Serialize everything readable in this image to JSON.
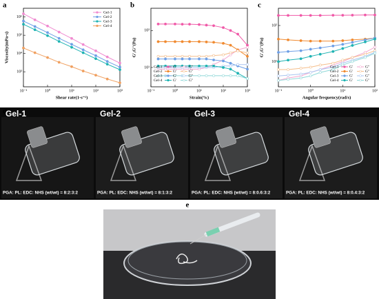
{
  "chart_data": [
    {
      "type": "line",
      "label": "a",
      "xlabel": "Shear rate(1·s⁻¹)",
      "ylabel": "Viscosity(mPa·s)",
      "xlog": true,
      "ylog": true,
      "legend": "upper right",
      "xlim": [
        0.1,
        1000
      ],
      "ylim": [
        150,
        3000000
      ],
      "xticks": [
        {
          "value": 0.1,
          "label": "10⁻¹"
        },
        {
          "value": 1,
          "label": "10⁰"
        },
        {
          "value": 10,
          "label": "10¹"
        },
        {
          "value": 100,
          "label": "10²"
        },
        {
          "value": 1000,
          "label": "10³"
        }
      ],
      "yticks": [
        {
          "value": 1000,
          "label": "10³"
        },
        {
          "value": 10000,
          "label": "10⁴"
        },
        {
          "value": 100000,
          "label": "10⁵"
        },
        {
          "value": 1000000,
          "label": "10⁶"
        }
      ],
      "x": [
        0.1,
        0.3,
        1,
        3,
        10,
        30,
        100,
        300,
        1000
      ],
      "series": [
        {
          "name": "Gel-1",
          "color": "#f08ad0",
          "filled": true,
          "values": [
            1500000,
            700000,
            320000,
            150000,
            67000,
            31000,
            14000,
            6500,
            3000
          ]
        },
        {
          "name": "Gel-2",
          "color": "#6e9fe6",
          "filled": true,
          "values": [
            600000,
            300000,
            140000,
            68000,
            32000,
            16000,
            7600,
            3700,
            1800
          ]
        },
        {
          "name": "Gel-3",
          "color": "#1fb3b3",
          "filled": true,
          "values": [
            400000,
            200000,
            95000,
            46000,
            22000,
            11000,
            5200,
            2600,
            1300
          ]
        },
        {
          "name": "Gel-4",
          "color": "#f0a060",
          "filled": true,
          "values": [
            20000,
            11000,
            6000,
            3300,
            1900,
            1100,
            650,
            400,
            250
          ]
        }
      ]
    },
    {
      "type": "line",
      "label": "b",
      "xlabel": "Strain(%)",
      "ylabel": "G',G''(Pa)",
      "xlog": true,
      "ylog": true,
      "legend": "lower left",
      "xlim": [
        0.1,
        1000
      ],
      "ylim": [
        3,
        400
      ],
      "xticks": [
        {
          "value": 0.1,
          "label": "10⁻¹"
        },
        {
          "value": 1,
          "label": "10⁰"
        },
        {
          "value": 10,
          "label": "10¹"
        },
        {
          "value": 100,
          "label": "10²"
        },
        {
          "value": 1000,
          "label": "10³"
        }
      ],
      "yticks": [
        {
          "value": 10,
          "label": "10¹"
        },
        {
          "value": 100,
          "label": "10²"
        }
      ],
      "x": [
        0.2,
        0.4,
        1,
        2,
        4,
        10,
        20,
        40,
        100,
        200,
        400,
        1000
      ],
      "series": [
        {
          "group": "Gel-1",
          "name": "G'",
          "color": "#f05aa8",
          "filled": true,
          "values": [
            150,
            150,
            150,
            148,
            148,
            145,
            140,
            135,
            120,
            100,
            80,
            40
          ]
        },
        {
          "group": "Gel-1",
          "name": "G''",
          "color": "#f3a6cf",
          "filled": false,
          "values": [
            9,
            9,
            9,
            9,
            9,
            9,
            10,
            12,
            16,
            22,
            30,
            35
          ]
        },
        {
          "group": "Gel-2",
          "name": "G'",
          "color": "#f08a30",
          "filled": true,
          "values": [
            50,
            50,
            50,
            50,
            50,
            50,
            49,
            48,
            45,
            40,
            30,
            20
          ]
        },
        {
          "group": "Gel-2",
          "name": "G''",
          "color": "#f5bd8a",
          "filled": false,
          "values": [
            20,
            20,
            20,
            20,
            20,
            20,
            20,
            21,
            22,
            25,
            28,
            25
          ]
        },
        {
          "group": "Gel-3",
          "name": "G'",
          "color": "#6e9fe6",
          "filled": true,
          "values": [
            17,
            17,
            17,
            17,
            17,
            17,
            17,
            16,
            15,
            13,
            11,
            9
          ]
        },
        {
          "group": "Gel-3",
          "name": "G''",
          "color": "#a8c4f0",
          "filled": false,
          "values": [
            10,
            10,
            10,
            10,
            10,
            10,
            10,
            10,
            11,
            11,
            12,
            12
          ]
        },
        {
          "group": "Gel-4",
          "name": "G'",
          "color": "#1fb3b3",
          "filled": true,
          "values": [
            11,
            11,
            11,
            11,
            11,
            11,
            11,
            11,
            10,
            9,
            7,
            5
          ]
        },
        {
          "group": "Gel-4",
          "name": "G''",
          "color": "#8fd8d8",
          "filled": false,
          "values": [
            6,
            6,
            6,
            6,
            6,
            6,
            6,
            6,
            6,
            6,
            6,
            5
          ]
        }
      ]
    },
    {
      "type": "line",
      "label": "c",
      "xlabel": "Angular frequency(rad/s)",
      "ylabel": "G',G''(Pa)",
      "xlog": true,
      "ylog": true,
      "legend": "lower right",
      "xlim": [
        0.1,
        100
      ],
      "ylim": [
        2,
        300
      ],
      "xticks": [
        {
          "value": 0.1,
          "label": "10⁻¹"
        },
        {
          "value": 1,
          "label": "10⁰"
        },
        {
          "value": 10,
          "label": "10¹"
        },
        {
          "value": 100,
          "label": "10²"
        }
      ],
      "yticks": [
        {
          "value": 10,
          "label": "10¹"
        },
        {
          "value": 100,
          "label": "10²"
        }
      ],
      "x": [
        0.1,
        0.2,
        0.5,
        1,
        2,
        5,
        10,
        20,
        50,
        100
      ],
      "series": [
        {
          "group": "Gel-1",
          "name": "G'",
          "color": "#f05aa8",
          "filled": true,
          "values": [
            190,
            190,
            190,
            190,
            190,
            192,
            192,
            193,
            195,
            195
          ]
        },
        {
          "group": "Gel-1",
          "name": "G''",
          "color": "#f3a6cf",
          "filled": false,
          "values": [
            3,
            3.5,
            4,
            5,
            6,
            8,
            10,
            13,
            18,
            25
          ]
        },
        {
          "group": "Gel-2",
          "name": "G'",
          "color": "#f08a30",
          "filled": true,
          "values": [
            42,
            40,
            38,
            37,
            37,
            37,
            38,
            40,
            42,
            45
          ]
        },
        {
          "group": "Gel-2",
          "name": "G''",
          "color": "#f5bd8a",
          "filled": false,
          "values": [
            6,
            6,
            6.5,
            7,
            8,
            9,
            11,
            13,
            16,
            20
          ]
        },
        {
          "group": "Gel-3",
          "name": "G'",
          "color": "#6e9fe6",
          "filled": true,
          "values": [
            18,
            19,
            20,
            22,
            24,
            27,
            30,
            34,
            40,
            45
          ]
        },
        {
          "group": "Gel-3",
          "name": "G''",
          "color": "#a8c4f0",
          "filled": false,
          "values": [
            4,
            4.2,
            4.5,
            5,
            6,
            7,
            9,
            11,
            14,
            18
          ]
        },
        {
          "group": "Gel-4",
          "name": "G'",
          "color": "#1fb3b3",
          "filled": true,
          "values": [
            10,
            11,
            12,
            14,
            16,
            19,
            23,
            28,
            35,
            42
          ]
        },
        {
          "group": "Gel-4",
          "name": "G''",
          "color": "#8fd8d8",
          "filled": false,
          "values": [
            3,
            3.2,
            3.5,
            4,
            5,
            6,
            8,
            10,
            13,
            17
          ]
        }
      ]
    }
  ],
  "panel_d": {
    "label": "d",
    "items": [
      {
        "title": "Gel-1",
        "caption": "PGA: PL: EDC: NHS (wt/wt) = 8:2:3:2"
      },
      {
        "title": "Gel-2",
        "caption": "PGA: PL: EDC: NHS (wt/wt) = 8:1:3:2"
      },
      {
        "title": "Gel-3",
        "caption": "PGA: PL: EDC: NHS (wt/wt) = 8:0.6:3:2"
      },
      {
        "title": "Gel-4",
        "caption": "PGA: PL: EDC: NHS (wt/wt) = 8:0.4:3:2"
      }
    ]
  },
  "panel_e": {
    "label": "e"
  }
}
